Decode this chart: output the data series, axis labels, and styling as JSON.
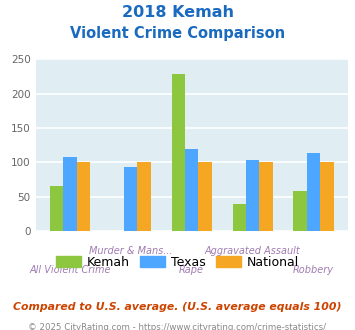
{
  "title_line1": "2018 Kemah",
  "title_line2": "Violent Crime Comparison",
  "categories": [
    "All Violent Crime",
    "Murder & Mans...",
    "Rape",
    "Aggravated Assault",
    "Robbery"
  ],
  "kemah": [
    65,
    0,
    229,
    40,
    58
  ],
  "texas": [
    108,
    93,
    120,
    104,
    114
  ],
  "national": [
    100,
    100,
    100,
    100,
    100
  ],
  "kemah_color": "#8dc63f",
  "texas_color": "#4da6ff",
  "national_color": "#f5a623",
  "bg_color": "#e0eef4",
  "title_color": "#1a6abf",
  "ylim": [
    0,
    250
  ],
  "yticks": [
    0,
    50,
    100,
    150,
    200,
    250
  ],
  "xlabel_color": "#a07cb0",
  "footer_text": "Compared to U.S. average. (U.S. average equals 100)",
  "copyright_text": "© 2025 CityRating.com - https://www.cityrating.com/crime-statistics/",
  "legend_labels": [
    "Kemah",
    "Texas",
    "National"
  ],
  "footer_color": "#cc4400",
  "copyright_color": "#888888"
}
